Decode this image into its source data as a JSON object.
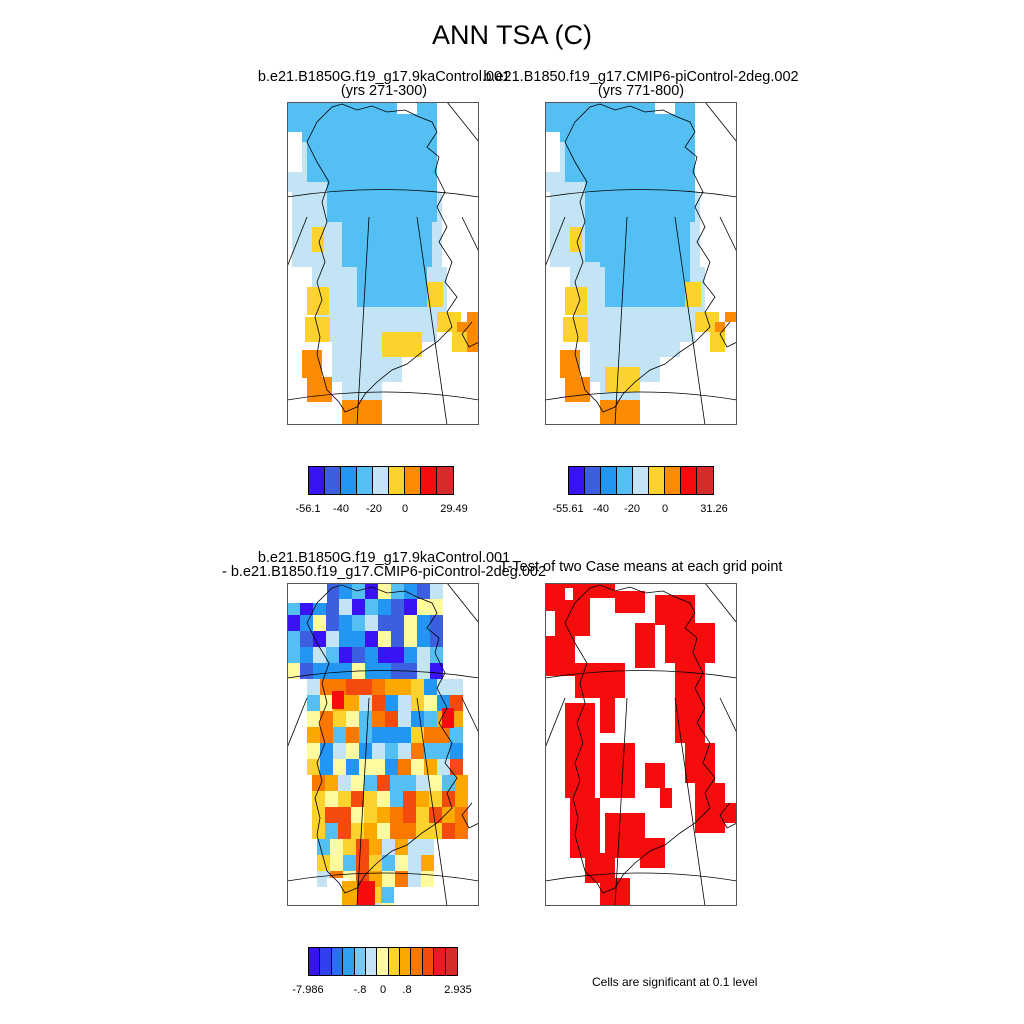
{
  "title": "ANN TSA (C)",
  "panels": [
    {
      "name": "case1-mean",
      "title_line1": "b.e21.B1850G.f19_g17.9kaControl.001",
      "title_line2": "(yrs 271-300)",
      "colorbar": {
        "colors": [
          "#3a13f5",
          "#3b5fe0",
          "#2396f3",
          "#53bff2",
          "#c3e4f4",
          "#fcd22c",
          "#fb8b00",
          "#f50d0d",
          "#d42b2b"
        ],
        "labels": [
          "-56.1",
          "-40",
          "-20",
          "0",
          "29.49"
        ]
      }
    },
    {
      "name": "case2-mean",
      "title_line1": "b.e21.B1850.f19_g17.CMIP6-piControl-2deg.002",
      "title_line2": "(yrs 771-800)",
      "colorbar": {
        "colors": [
          "#3a13f5",
          "#3b5fe0",
          "#2396f3",
          "#53bff2",
          "#c3e4f4",
          "#fcd22c",
          "#fb8b00",
          "#f50d0d",
          "#d42b2b"
        ],
        "labels": [
          "-55.61",
          "-40",
          "-20",
          "0",
          "31.26"
        ]
      }
    },
    {
      "name": "difference",
      "title_line1": "b.e21.B1850G.f19_g17.9kaControl.001",
      "title_line2": "- b.e21.B1850.f19_g17.CMIP6-piControl-2deg.002",
      "colorbar": {
        "colors": [
          "#3a13f5",
          "#3040f0",
          "#2f6df0",
          "#2fa0f0",
          "#78c8f2",
          "#c3e4f4",
          "#fdfaa0",
          "#fcd22c",
          "#fba800",
          "#fb7800",
          "#f54a0d",
          "#e81c1c",
          "#d42b2b"
        ],
        "labels": [
          "-7.986",
          "-.8",
          "0",
          ".8",
          "2.935"
        ]
      }
    },
    {
      "name": "t-test",
      "title_line1": "T-Test of two Case means at each grid point",
      "note": "Cells are significant at 0.1 level"
    }
  ]
}
